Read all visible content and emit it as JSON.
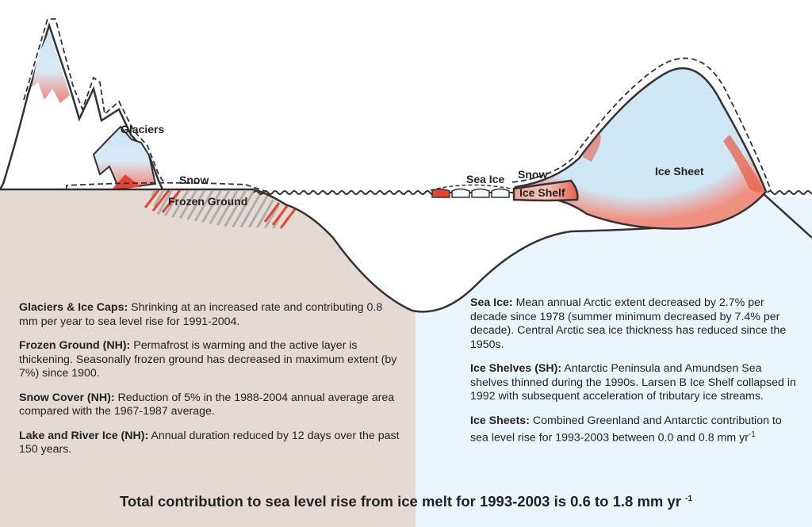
{
  "labels": {
    "glaciers": "Glaciers",
    "snow_left": "Snow",
    "frozen_ground": "Frozen Ground",
    "sea_ice": "Sea Ice",
    "snow_right": "Snow",
    "ice_shelf": "Ice Shelf",
    "ice_sheet": "Ice Sheet"
  },
  "left_panel": [
    {
      "title": "Glaciers & Ice Caps:",
      "text": "Shrinking at an increased rate and contributing 0.8 mm per year to sea level rise for 1991-2004."
    },
    {
      "title": "Frozen Ground (NH):",
      "text": "Permafrost is warming and the active layer is thickening. Seasonally frozen ground has decreased in maximum extent (by 7%) since 1900."
    },
    {
      "title": "Snow Cover (NH):",
      "text": "Reduction of 5% in the 1988-2004 annual average area compared with the 1967-1987 average."
    },
    {
      "title": "Lake and River Ice (NH):",
      "text": "Annual duration reduced by 12 days over the past 150 years."
    }
  ],
  "right_panel": [
    {
      "title": "Sea Ice:",
      "text": "Mean annual Arctic extent decreased by 2.7% per decade since 1978 (summer minimum decreased by 7.4% per decade). Central Arctic sea ice thickness has reduced since the 1950s."
    },
    {
      "title": "Ice Shelves (SH):",
      "text": "Antarctic Peninsula and Amundsen Sea shelves thinned during the 1990s.  Larsen B Ice Shelf collapsed in 1992 with subsequent acceleration of tributary ice streams."
    },
    {
      "title": "Ice Sheets:",
      "text": "Combined Greenland and Antarctic contribution to sea level rise for 1993-2003 between 0.0 and 0.8 mm yr",
      "sup": "-1"
    }
  ],
  "footer": {
    "text": "Total contribution to sea level rise from ice melt for 1993-2003 is 0.6 to 1.8 mm yr",
    "sup": "-1"
  },
  "colors": {
    "land": "#e5d9d4",
    "ocean": "#eaf5fb",
    "ice": "#cfe6f5",
    "melt": "#e8432f",
    "outline": "#333333"
  }
}
